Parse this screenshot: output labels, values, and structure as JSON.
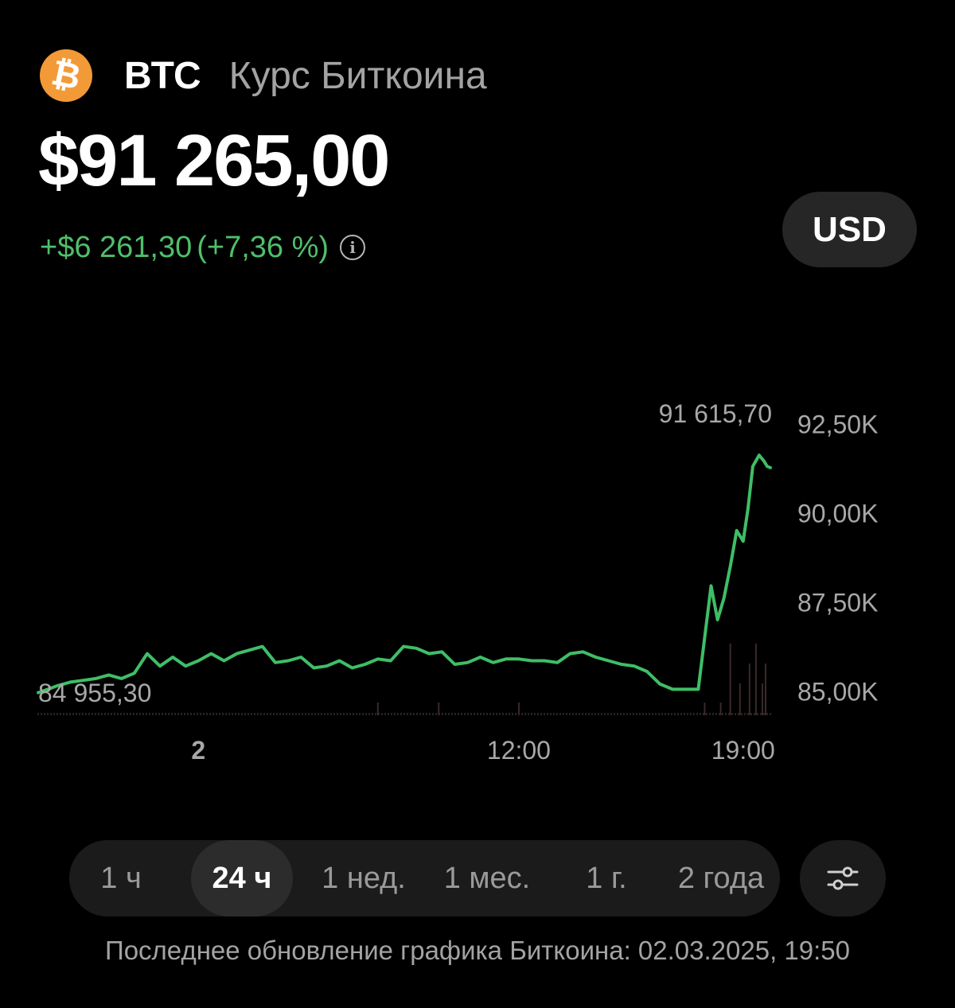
{
  "header": {
    "coin_icon": "bitcoin-icon",
    "coin_icon_glyph": "₿",
    "ticker": "BTC",
    "name": "Курс Биткоина"
  },
  "price": {
    "value": "$91 265,00",
    "change_abs": "+$6 261,30",
    "change_pct": "(+7,36 %)",
    "info_icon": "info-icon",
    "info_glyph": "i"
  },
  "currency": {
    "label": "USD"
  },
  "colors": {
    "background": "#000000",
    "line": "#3fbe66",
    "change_positive": "#4fbf6b",
    "coin": "#f39a38",
    "muted_text": "#a3a3a3"
  },
  "chart_data": {
    "type": "line",
    "high_label": "91 615,70",
    "low_label": "84 955,30",
    "y_ticks": [
      "92,50K",
      "90,00K",
      "87,50K",
      "85,00K"
    ],
    "y_tick_values": [
      92500,
      90000,
      87500,
      85000
    ],
    "x_ticks": [
      "2",
      "12:00",
      "19:00"
    ],
    "x_tick_hours": [
      2,
      12,
      19
    ],
    "x_range_hours": [
      -3,
      19.85
    ],
    "ylim": [
      84300,
      93000
    ],
    "series": [
      {
        "x": [
          -3.0,
          -2.7,
          -2.4,
          -2.0,
          -1.6,
          -1.2,
          -0.8,
          -0.4,
          0.0,
          0.4,
          0.8,
          1.2,
          1.6,
          2.0,
          2.4,
          2.8,
          3.2,
          3.6,
          4.0,
          4.4,
          4.8,
          5.2,
          5.6,
          6.0,
          6.4,
          6.8,
          7.2,
          7.6,
          8.0,
          8.4,
          8.8,
          9.2,
          9.6,
          10.0,
          10.4,
          10.8,
          11.2,
          11.6,
          12.0,
          12.4,
          12.8,
          13.2,
          13.6,
          14.0,
          14.4,
          14.8,
          15.2,
          15.6,
          16.0,
          16.4,
          16.8,
          17.2,
          17.6,
          18.0,
          18.2,
          18.4,
          18.6,
          18.8,
          19.0,
          19.15,
          19.3,
          19.5,
          19.65,
          19.75,
          19.85
        ],
        "y": [
          84955,
          85050,
          85150,
          85250,
          85300,
          85350,
          85450,
          85350,
          85500,
          86050,
          85700,
          85950,
          85700,
          85850,
          86050,
          85850,
          86050,
          86150,
          86250,
          85800,
          85850,
          85950,
          85650,
          85700,
          85850,
          85650,
          85750,
          85900,
          85850,
          86250,
          86200,
          86050,
          86100,
          85750,
          85800,
          85950,
          85800,
          85900,
          85900,
          85850,
          85850,
          85800,
          86050,
          86100,
          85950,
          85850,
          85750,
          85700,
          85550,
          85200,
          85050,
          85050,
          85050,
          87950,
          87000,
          87600,
          88500,
          89500,
          89200,
          90100,
          91300,
          91615,
          91450,
          91300,
          91265
        ]
      }
    ],
    "volume_spikes_hours": [
      7.6,
      9.5,
      12.0,
      17.8,
      18.3,
      18.6,
      18.9,
      19.2,
      19.4,
      19.6,
      19.7
    ]
  },
  "ranges": {
    "items": [
      {
        "label": "1 ч",
        "active": false
      },
      {
        "label": "24 ч",
        "active": true
      },
      {
        "label": "1 нед.",
        "active": false
      },
      {
        "label": "1 мес.",
        "active": false
      },
      {
        "label": "1 г.",
        "active": false
      },
      {
        "label": "2 года",
        "active": false
      }
    ],
    "settings_icon": "sliders-icon"
  },
  "footer": {
    "text": "Последнее обновление графика Биткоина: 02.03.2025, 19:50"
  }
}
